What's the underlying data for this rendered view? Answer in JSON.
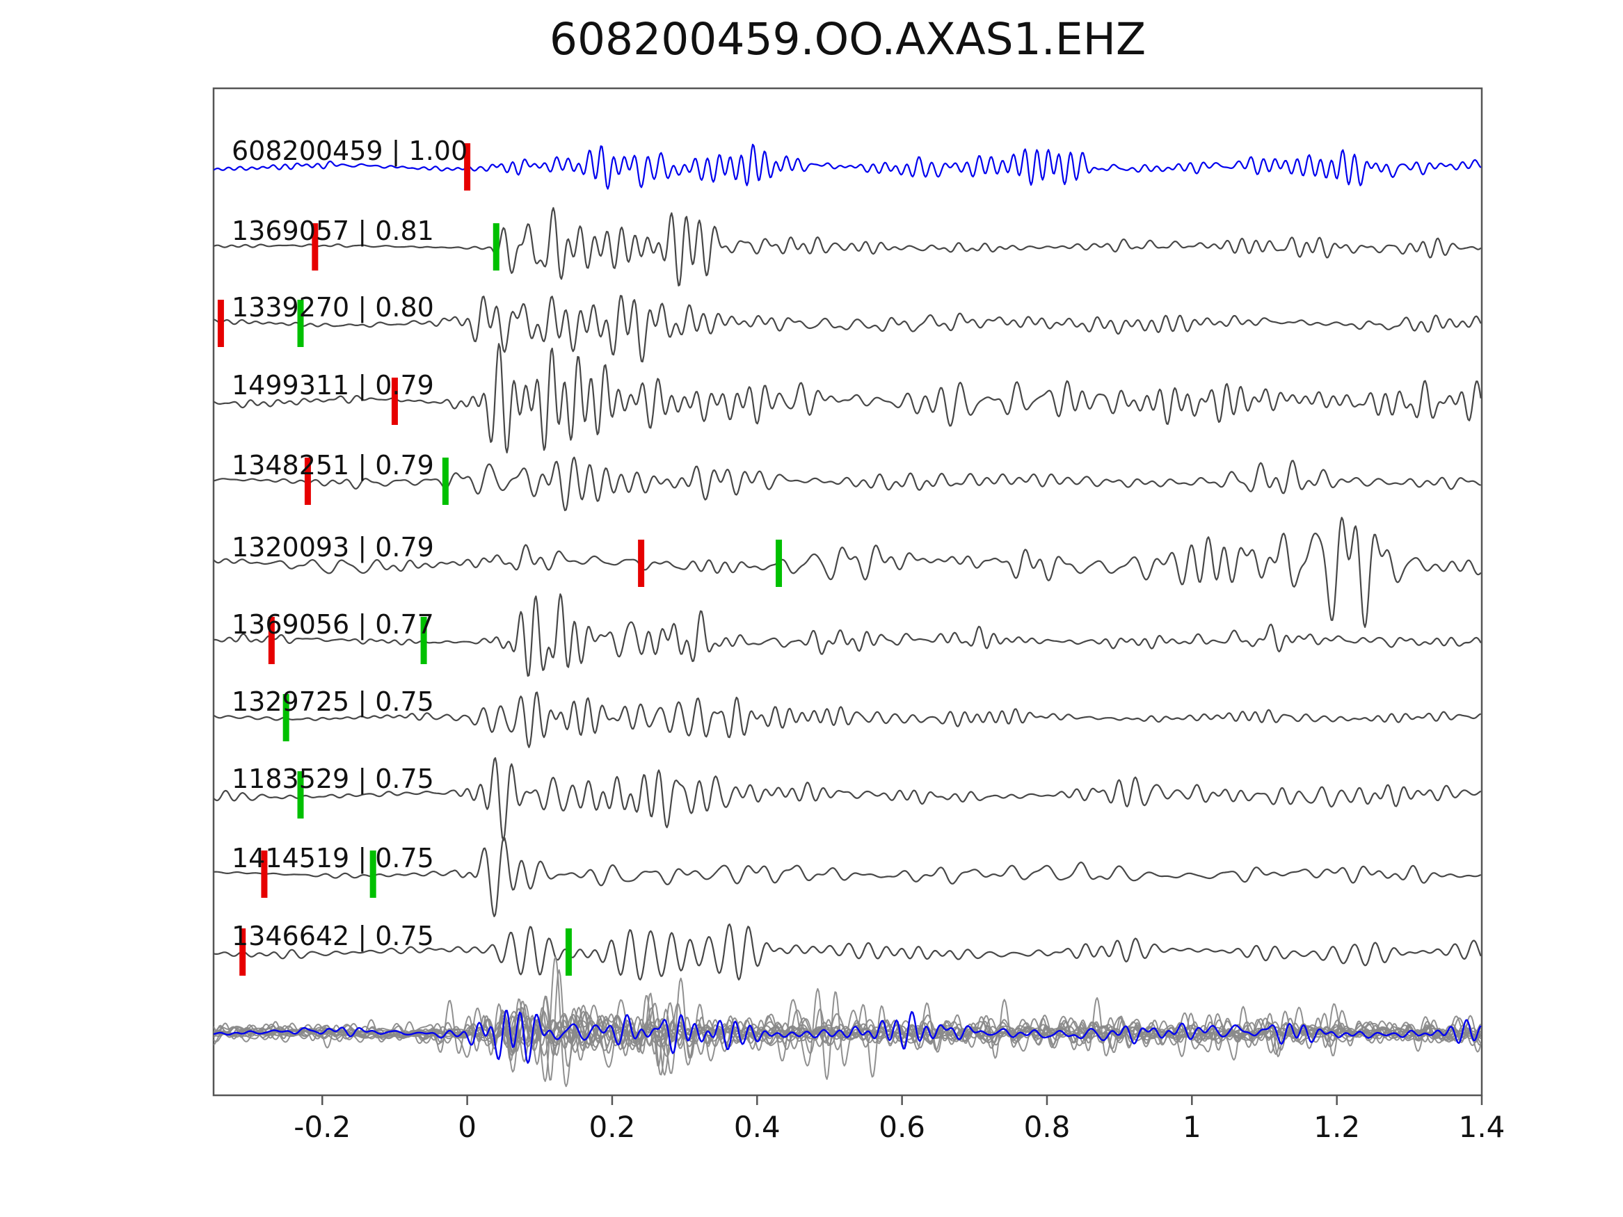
{
  "figure": {
    "title": "608200459.OO.AXAS1.EHZ"
  },
  "chart_data": {
    "type": "line",
    "subtype": "seismogram-template-match-stack",
    "title": "608200459.OO.AXAS1.EHZ",
    "xlabel": "",
    "ylabel": "",
    "xlim": [
      -0.35,
      1.4
    ],
    "xticks": [
      -0.2,
      0,
      0.2,
      0.4,
      0.6,
      0.8,
      1,
      1.2,
      1.4
    ],
    "xtick_labels": [
      "-0.2",
      "0",
      "0.2",
      "0.4",
      "0.6",
      "0.8",
      "1",
      "1.2",
      "1.4"
    ],
    "grid": false,
    "legend": null,
    "colors": {
      "template": "#0000ee",
      "match": "#474747",
      "overlay": "#8a8a8a",
      "overlay_template": "#0000ee",
      "pick_red": "#e60000",
      "pick_green": "#00c000",
      "axis": "#555555",
      "text": "#111111",
      "background": "#ffffff"
    },
    "traces": [
      {
        "label": "608200459 | 1.00",
        "event_id": "608200459",
        "score": "1.00",
        "role": "template",
        "color": "#0000ee",
        "picks": [
          {
            "color": "red",
            "x": 0.0
          }
        ],
        "render": {
          "seed": 11,
          "amp": 46,
          "noise": 7,
          "onset": 0.02,
          "rise": 0.05,
          "decay": 0.5,
          "coda": 0.4,
          "freq": 40
        }
      },
      {
        "label": "1369057 | 0.81",
        "event_id": "1369057",
        "score": "0.81",
        "role": "match",
        "color": "#474747",
        "picks": [
          {
            "color": "red",
            "x": -0.21
          },
          {
            "color": "green",
            "x": 0.04
          }
        ],
        "render": {
          "seed": 22,
          "amp": 76,
          "noise": 5,
          "onset": 0.03,
          "rise": 0.05,
          "decay": 0.25,
          "coda": 0.12,
          "freq": 35
        }
      },
      {
        "label": "1339270 | 0.80",
        "event_id": "1339270",
        "score": "0.80",
        "role": "match",
        "color": "#474747",
        "picks": [
          {
            "color": "red",
            "x": -0.34
          },
          {
            "color": "green",
            "x": -0.23
          }
        ],
        "render": {
          "seed": 33,
          "amp": 76,
          "noise": 7,
          "onset": -0.06,
          "rise": 0.08,
          "decay": 0.3,
          "coda": 0.12,
          "freq": 34
        }
      },
      {
        "label": "1499311 | 0.79",
        "event_id": "1499311",
        "score": "0.79",
        "role": "match",
        "color": "#474747",
        "picks": [
          {
            "color": "red",
            "x": -0.1
          }
        ],
        "render": {
          "seed": 44,
          "amp": 70,
          "noise": 9,
          "onset": -0.04,
          "rise": 0.06,
          "decay": 0.4,
          "coda": 0.28,
          "freq": 33,
          "bumps": [
            {
              "x": 0.55,
              "a": 24,
              "w": 0.12
            },
            {
              "x": 0.95,
              "a": 15,
              "w": 0.12
            }
          ]
        }
      },
      {
        "label": "1348251 | 0.79",
        "event_id": "1348251",
        "score": "0.79",
        "role": "match",
        "color": "#474747",
        "picks": [
          {
            "color": "red",
            "x": -0.22
          },
          {
            "color": "green",
            "x": -0.03
          }
        ],
        "render": {
          "seed": 55,
          "amp": 75,
          "noise": 6,
          "onset": -0.05,
          "rise": 0.07,
          "decay": 0.32,
          "coda": 0.16,
          "freq": 35
        }
      },
      {
        "label": "1320093 | 0.79",
        "event_id": "1320093",
        "score": "0.79",
        "role": "match",
        "color": "#474747",
        "picks": [
          {
            "color": "red",
            "x": 0.24
          },
          {
            "color": "green",
            "x": 0.43
          }
        ],
        "render": {
          "seed": 66,
          "amp": 16,
          "noise": 13,
          "onset": 0.0,
          "rise": 0.08,
          "decay": 0.6,
          "coda": 0.6,
          "freq": 30,
          "bumps": [
            {
              "x": 1.02,
              "a": 38,
              "w": 0.17
            },
            {
              "x": 1.28,
              "a": 34,
              "w": 0.14
            }
          ]
        }
      },
      {
        "label": "1369056 | 0.77",
        "event_id": "1369056",
        "score": "0.77",
        "role": "match",
        "color": "#474747",
        "picks": [
          {
            "color": "red",
            "x": -0.27
          },
          {
            "color": "green",
            "x": -0.06
          }
        ],
        "render": {
          "seed": 77,
          "amp": 74,
          "noise": 6,
          "onset": 0.0,
          "rise": 0.06,
          "decay": 0.28,
          "coda": 0.13,
          "freq": 36
        }
      },
      {
        "label": "1329725 | 0.75",
        "event_id": "1329725",
        "score": "0.75",
        "role": "match",
        "color": "#474747",
        "picks": [
          {
            "color": "green",
            "x": -0.25
          }
        ],
        "render": {
          "seed": 88,
          "amp": 77,
          "noise": 5,
          "onset": 0.0,
          "rise": 0.07,
          "decay": 0.27,
          "coda": 0.12,
          "freq": 34,
          "bumps": [
            {
              "x": 0.46,
              "a": 22,
              "w": 0.07
            }
          ]
        }
      },
      {
        "label": "1183529 | 0.75",
        "event_id": "1183529",
        "score": "0.75",
        "role": "match",
        "color": "#474747",
        "picks": [
          {
            "color": "green",
            "x": -0.23
          }
        ],
        "render": {
          "seed": 99,
          "amp": 79,
          "noise": 8,
          "onset": -0.02,
          "rise": 0.07,
          "decay": 0.3,
          "coda": 0.13,
          "freq": 35
        }
      },
      {
        "label": "1414519 | 0.75",
        "event_id": "1414519",
        "score": "0.75",
        "role": "match",
        "color": "#474747",
        "picks": [
          {
            "color": "red",
            "x": -0.28
          },
          {
            "color": "green",
            "x": -0.13
          }
        ],
        "render": {
          "seed": 110,
          "amp": 86,
          "noise": 6,
          "onset": -0.02,
          "rise": 0.06,
          "decay": 0.2,
          "coda": 0.1,
          "freq": 33
        }
      },
      {
        "label": "1346642 | 0.75",
        "event_id": "1346642",
        "score": "0.75",
        "role": "match",
        "color": "#474747",
        "picks": [
          {
            "color": "red",
            "x": -0.31
          },
          {
            "color": "green",
            "x": 0.14
          }
        ],
        "render": {
          "seed": 121,
          "amp": 72,
          "noise": 9,
          "onset": 0.03,
          "rise": 0.07,
          "decay": 0.3,
          "coda": 0.14,
          "freq": 33
        }
      }
    ],
    "overlay_row": {
      "gray_trace_count": 13,
      "blue_trace": true,
      "render": {
        "seed": 777,
        "amp": 62,
        "noise": 7,
        "onset": -0.01,
        "rise": 0.07,
        "decay": 0.3,
        "coda": 0.18,
        "freq": 34
      }
    }
  }
}
